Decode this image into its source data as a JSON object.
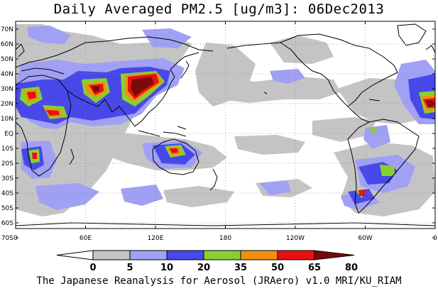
{
  "title": "Daily Averaged PM2.5 [ug/m3]: 06Dec2013",
  "footer": "The Japanese Reanalysis for Aerosol (JRAero) v1.0 MRI/KU_RIAM",
  "latitude_labels": [
    "70N",
    "60N",
    "50N",
    "40N",
    "30N",
    "20N",
    "10N",
    "EQ",
    "10S",
    "20S",
    "30S",
    "40S",
    "50S",
    "60S",
    "70S"
  ],
  "longitude_labels": [
    "0",
    "60E",
    "120E",
    "180",
    "120W",
    "60W",
    "0"
  ],
  "legend": {
    "values": [
      "0",
      "5",
      "10",
      "20",
      "35",
      "50",
      "65",
      "80"
    ],
    "colors": [
      "#ffffff",
      "#c4c4c4",
      "#a0a0f4",
      "#4848e8",
      "#88d030",
      "#f09010",
      "#e81010",
      "#7a0a0a"
    ]
  },
  "colors": {
    "coast": "#000000",
    "grid": "#888888"
  }
}
